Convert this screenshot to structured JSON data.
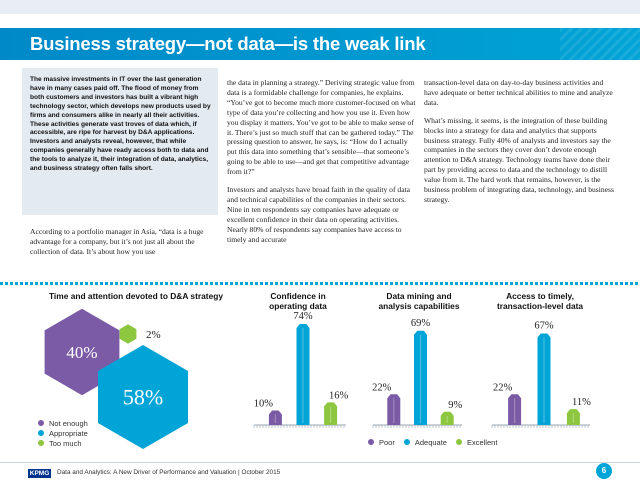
{
  "header": {
    "title": "Business strategy—not data—is the weak link"
  },
  "intro": {
    "text": "The massive investments in IT over the last generation have in many cases paid off. The flood of money from both customers and investors has built a vibrant high technology sector, which develops new products used by firms and consumers alike in nearly all their activities. These activities generate vast troves of data which, if accessible, are ripe for harvest by D&A applications. Investors and analysts reveal, however, that while companies generally have ready access both to data and the tools to analyze it, their integration of data, analytics, and business strategy often falls short."
  },
  "body": {
    "col1_p1": "According to a portfolio manager in Asia, “data is a huge advantage for a company, but it’s not just all about the collection of data. It’s about how you use",
    "col2_p1": "the data in planning a strategy.” Deriving strategic value from data is a formidable challenge for companies, he explains. “You’ve got to become much more customer-focused on what type of data you’re collecting and how you use it. Even how you display it matters. You’ve got to be able to make sense of it. There’s just so much stuff that can be gathered today.” The pressing question to answer, he says, is: “How do I actually put this data into something that’s sensible—that someone’s going to be able to use—and get that competitive advantage from it?”",
    "col2_p2": "Investors and analysts have broad faith in the quality of data and technical capabilities of the companies in their sectors. Nine in ten respondents say companies have adequate or excellent confidence in their data on operating activities. Nearly 80% of respondents say companies have access to timely and accurate",
    "col3_p1": "transaction-level data on day-to-day business activities and have adequate or better technical abilities to mine and analyze data.",
    "col3_p2": "What’s missing, it seems, is the integration of these building blocks into a strategy for data and analytics that supports business strategy. Fully 40% of analysts and investors say the companies in the sectors they cover don’t devote enough attention to D&A strategy. Technology teams have done their part by providing access to data and the technology to distill value from it. The hard work that remains, however, is the business problem of integrating data, technology, and business strategy."
  },
  "colors": {
    "purple": "#7b5aa6",
    "teal": "#00a4d6",
    "green": "#8dc63f"
  },
  "chart_data": [
    {
      "type": "pie",
      "title": "Time and attention devoted to D&A strategy",
      "categories": [
        "Not enough",
        "Appropriate",
        "Too much"
      ],
      "values": [
        40,
        58,
        2
      ],
      "labels": [
        "40%",
        "58%",
        "2%"
      ]
    },
    {
      "type": "bar",
      "title": "Confidence in operating data",
      "categories": [
        "Poor",
        "Adequate",
        "Excellent"
      ],
      "values": [
        10,
        74,
        16
      ],
      "labels": [
        "10%",
        "74%",
        "16%"
      ]
    },
    {
      "type": "bar",
      "title": "Data mining and analysis capabilities",
      "categories": [
        "Poor",
        "Adequate",
        "Excellent"
      ],
      "values": [
        22,
        69,
        9
      ],
      "labels": [
        "22%",
        "69%",
        "9%"
      ]
    },
    {
      "type": "bar",
      "title": "Access to timely, transaction-level data",
      "categories": [
        "Poor",
        "Adequate",
        "Excellent"
      ],
      "values": [
        22,
        67,
        11
      ],
      "labels": [
        "22%",
        "67%",
        "11%"
      ]
    }
  ],
  "charts": {
    "pie_title": "Time and attention devoted to D&A strategy",
    "bar1_title": "Confidence in operating data",
    "bar2_title": "Data mining and analysis capabilities",
    "bar3_title": "Access to timely, transaction-level data"
  },
  "legend_pie": [
    "Not enough",
    "Appropriate",
    "Too much"
  ],
  "legend_bars": [
    "Poor",
    "Adequate",
    "Excellent"
  ],
  "footer": {
    "logo": "KPMG",
    "text": "Data and Analytics: A New Driver of Performance and Valuation | October 2015",
    "page": "6"
  }
}
